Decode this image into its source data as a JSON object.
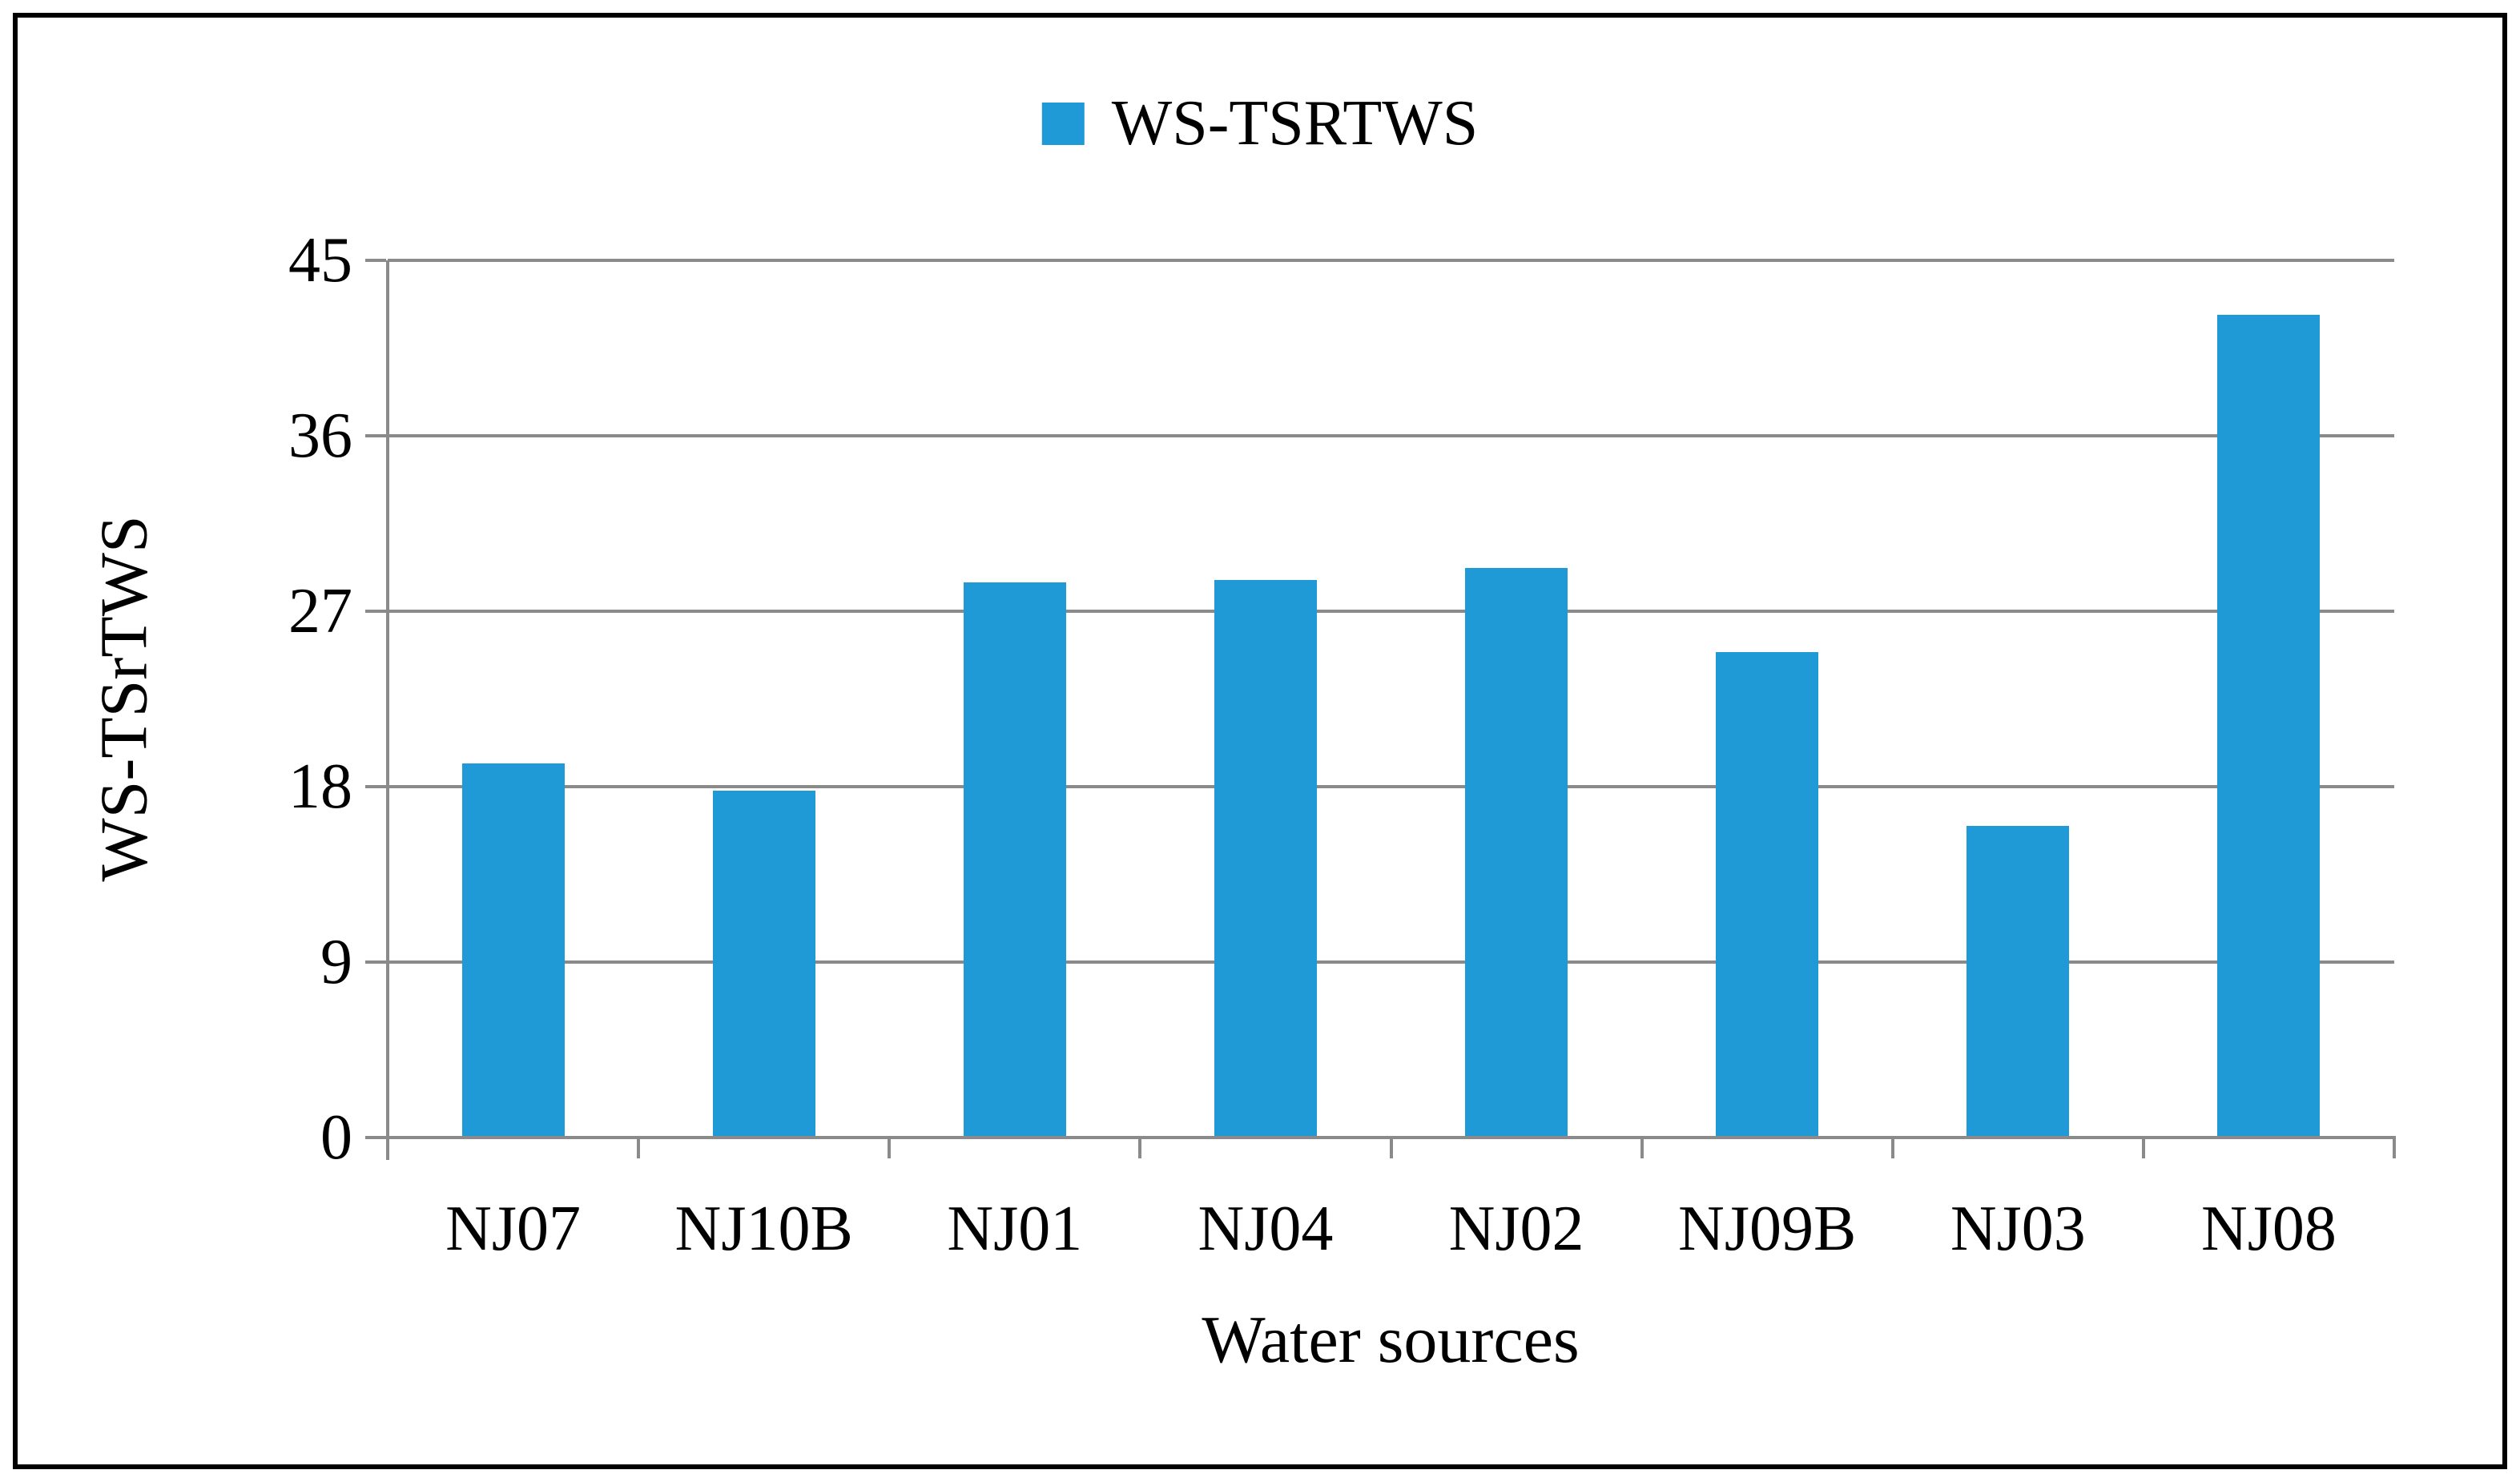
{
  "figure": {
    "background": "#FFFFFF",
    "border_color": "#000000"
  },
  "legend": {
    "label": "WS-TSRTWS"
  },
  "chart_data": {
    "type": "bar",
    "title": "",
    "categories": [
      "NJ07",
      "NJ10B",
      "NJ01",
      "NJ04",
      "NJ02",
      "NJ09B",
      "NJ03",
      "NJ08"
    ],
    "values": [
      19.2,
      17.8,
      28.5,
      28.6,
      29.2,
      24.9,
      16.0,
      42.2
    ],
    "series": [
      {
        "name": "WS-TSRTWS",
        "values": [
          19.2,
          17.8,
          28.5,
          28.6,
          29.2,
          24.9,
          16.0,
          42.2
        ]
      }
    ],
    "xlabel": "Water sources",
    "ylabel": "WS-TSrTWS",
    "ylim": [
      0,
      45
    ],
    "yticks": [
      0,
      9,
      18,
      27,
      36,
      45
    ],
    "grid": true,
    "legend_position": "top-center",
    "colors": {
      "bar": "#1F9AD7",
      "gridline": "#8A8A8A",
      "axis": "#8A8A8A",
      "text": "#000000"
    }
  }
}
